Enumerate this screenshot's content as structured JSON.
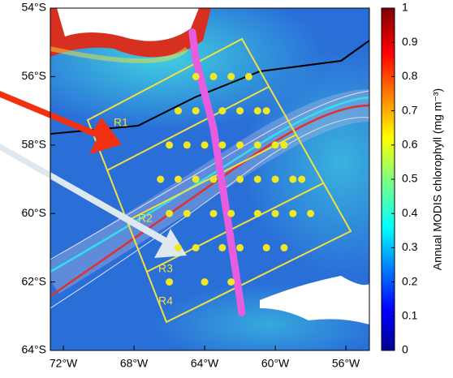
{
  "map": {
    "xlim": [
      -72.74,
      -54.67
    ],
    "ylim": [
      -64,
      -54
    ],
    "xticks": [
      {
        "value": -72,
        "label": "72°W"
      },
      {
        "value": -68,
        "label": "68°W"
      },
      {
        "value": -64,
        "label": "64°W"
      },
      {
        "value": -60,
        "label": "60°W"
      },
      {
        "value": -56,
        "label": "56°W"
      }
    ],
    "yticks": [
      {
        "value": -54,
        "label": "54°S"
      },
      {
        "value": -56,
        "label": "56°S"
      },
      {
        "value": -58,
        "label": "58°S"
      },
      {
        "value": -60,
        "label": "60°S"
      },
      {
        "value": -62,
        "label": "62°S"
      },
      {
        "value": -64,
        "label": "64°S"
      }
    ],
    "regions": [
      "R1",
      "R2",
      "R3",
      "R4"
    ],
    "stations": {
      "color": "#f0e820",
      "lon": [
        -64.5,
        -63.5,
        -62.5,
        -61.5,
        -65.5,
        -64.5,
        -63,
        -62,
        -61,
        -60.5,
        -66,
        -65,
        -64,
        -63,
        -62,
        -61,
        -60,
        -59.5,
        -66.5,
        -65.5,
        -64.5,
        -63.5,
        -62,
        -61,
        -60,
        -59,
        -58.5,
        -66,
        -65,
        -63.5,
        -62.5,
        -61,
        -60,
        -59,
        -58,
        -65.5,
        -64.5,
        -63,
        -62,
        -60.5,
        -59.5,
        -66,
        -64,
        -62.5
      ],
      "lat": [
        -56,
        -56,
        -56,
        -56,
        -57,
        -57,
        -57,
        -57,
        -57,
        -57,
        -58,
        -58,
        -58,
        -58,
        -58,
        -58,
        -58,
        -58,
        -59,
        -59,
        -59,
        -59,
        -59,
        -59,
        -59,
        -59,
        -59,
        -60,
        -60,
        -60,
        -60,
        -60,
        -60,
        -60,
        -60,
        -61,
        -61,
        -61,
        -61,
        -61,
        -61,
        -62,
        -62,
        -62
      ]
    },
    "track": {
      "color": "#e85ce0",
      "lon": [
        -64.7,
        -64.5,
        -64.0,
        -63.5,
        -63.2,
        -62.9,
        -62.6,
        -62.3,
        -62.0,
        -61.9
      ],
      "lat": [
        -54.7,
        -55.5,
        -56.5,
        -57.5,
        -58.5,
        -59.5,
        -60.5,
        -61.5,
        -62.5,
        -62.9
      ]
    },
    "colorbar": {
      "label": "Annual MODIS chlorophyll (mg m⁻³)",
      "lim": [
        0,
        1
      ],
      "ticks": [
        0,
        0.1,
        0.2,
        0.3,
        0.4,
        0.5,
        0.6,
        0.7,
        0.8,
        0.9,
        1
      ]
    }
  }
}
